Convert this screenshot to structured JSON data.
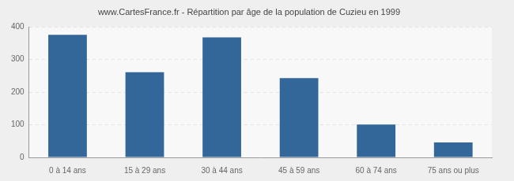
{
  "chart_data": {
    "type": "bar",
    "title": "www.CartesFrance.fr - Répartition par âge de la population de Cuzieu en 1999",
    "categories": [
      "0 à 14 ans",
      "15 à 29 ans",
      "30 à 44 ans",
      "45 à 59 ans",
      "60 à 74 ans",
      "75 ans ou plus"
    ],
    "values": [
      376,
      261,
      368,
      243,
      101,
      46
    ],
    "color": "#336699",
    "ylim": [
      0,
      400
    ],
    "yticks": [
      0,
      100,
      200,
      300,
      400
    ],
    "grid": true
  }
}
